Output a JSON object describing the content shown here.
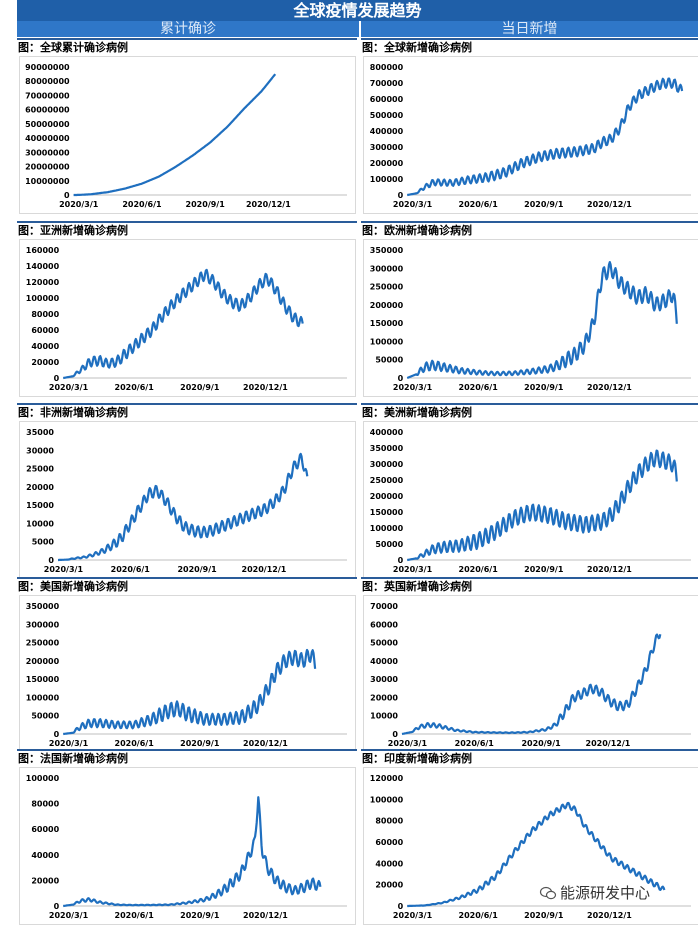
{
  "banner": {
    "title": "全球疫情发展趋势"
  },
  "columns": {
    "left": "累计确诊",
    "right": "当日新增"
  },
  "watermark": {
    "icon": "wechat-icon",
    "text": "能源研发中心"
  },
  "colors": {
    "line": "#1f6fbf",
    "banner": "#1f5fa8",
    "column_header": "#2f77c8"
  },
  "chart_data": [
    {
      "id": "c1",
      "type": "line",
      "title": "图：全球累计确诊病例",
      "x_labels": [
        "2020/3/1",
        "2020/6/1",
        "2020/9/1",
        "2020/12/1"
      ],
      "y_ticks": [
        0,
        10000000,
        20000000,
        30000000,
        40000000,
        50000000,
        60000000,
        70000000,
        80000000,
        90000000
      ],
      "ylim": [
        0,
        90000000
      ],
      "points": [
        [
          0,
          0
        ],
        [
          0.03,
          50000
        ],
        [
          0.1,
          500000
        ],
        [
          0.2,
          2000000
        ],
        [
          0.3,
          4500000
        ],
        [
          0.4,
          8000000
        ],
        [
          0.5,
          13000000
        ],
        [
          0.6,
          20000000
        ],
        [
          0.7,
          28000000
        ],
        [
          0.8,
          37000000
        ],
        [
          0.9,
          48000000
        ],
        [
          1.0,
          61000000
        ],
        [
          1.1,
          73000000
        ],
        [
          1.18,
          85000000
        ]
      ]
    },
    {
      "id": "c2",
      "type": "line",
      "title": "图：全球新增确诊病例",
      "x_labels": [
        "2020/3/1",
        "2020/6/1",
        "2020/9/1",
        "2020/12/1"
      ],
      "y_ticks": [
        0,
        100000,
        200000,
        300000,
        400000,
        500000,
        600000,
        700000,
        800000
      ],
      "ylim": [
        0,
        800000
      ],
      "points": [
        [
          0,
          0
        ],
        [
          0.05,
          10000
        ],
        [
          0.1,
          50000
        ],
        [
          0.15,
          80000
        ],
        [
          0.25,
          75000
        ],
        [
          0.35,
          95000
        ],
        [
          0.45,
          110000
        ],
        [
          0.55,
          140000
        ],
        [
          0.65,
          200000
        ],
        [
          0.75,
          240000
        ],
        [
          0.85,
          260000
        ],
        [
          0.95,
          270000
        ],
        [
          1.05,
          290000
        ],
        [
          1.1,
          330000
        ],
        [
          1.15,
          350000
        ],
        [
          1.2,
          420000
        ],
        [
          1.25,
          550000
        ],
        [
          1.3,
          620000
        ],
        [
          1.35,
          650000
        ],
        [
          1.4,
          680000
        ],
        [
          1.45,
          700000
        ],
        [
          1.5,
          700000
        ],
        [
          1.55,
          650000
        ]
      ],
      "amp": 30000
    },
    {
      "id": "c3",
      "type": "line",
      "title": "图：亚洲新增确诊病例",
      "x_labels": [
        "2020/3/1",
        "2020/6/1",
        "2020/9/1",
        "2020/12/1"
      ],
      "y_ticks": [
        0,
        20000,
        40000,
        60000,
        80000,
        100000,
        120000,
        140000,
        160000
      ],
      "ylim": [
        0,
        160000
      ],
      "points": [
        [
          0,
          0
        ],
        [
          0.05,
          2000
        ],
        [
          0.1,
          10000
        ],
        [
          0.15,
          20000
        ],
        [
          0.2,
          22000
        ],
        [
          0.25,
          18000
        ],
        [
          0.3,
          20000
        ],
        [
          0.35,
          30000
        ],
        [
          0.4,
          40000
        ],
        [
          0.45,
          50000
        ],
        [
          0.5,
          60000
        ],
        [
          0.55,
          75000
        ],
        [
          0.6,
          88000
        ],
        [
          0.65,
          100000
        ],
        [
          0.7,
          110000
        ],
        [
          0.75,
          120000
        ],
        [
          0.8,
          130000
        ],
        [
          0.85,
          120000
        ],
        [
          0.9,
          105000
        ],
        [
          0.95,
          95000
        ],
        [
          1.0,
          90000
        ],
        [
          1.05,
          100000
        ],
        [
          1.1,
          115000
        ],
        [
          1.15,
          125000
        ],
        [
          1.2,
          110000
        ],
        [
          1.25,
          90000
        ],
        [
          1.3,
          75000
        ],
        [
          1.35,
          68000
        ]
      ],
      "amp": 7000
    },
    {
      "id": "c4",
      "type": "line",
      "title": "图：欧洲新增确诊病例",
      "x_labels": [
        "2020/3/1",
        "2020/6/1",
        "2020/9/1",
        "2020/12/1"
      ],
      "y_ticks": [
        0,
        50000,
        100000,
        150000,
        200000,
        250000,
        300000,
        350000
      ],
      "ylim": [
        0,
        350000
      ],
      "points": [
        [
          0,
          0
        ],
        [
          0.05,
          10000
        ],
        [
          0.1,
          30000
        ],
        [
          0.15,
          35000
        ],
        [
          0.2,
          30000
        ],
        [
          0.3,
          20000
        ],
        [
          0.4,
          15000
        ],
        [
          0.5,
          12000
        ],
        [
          0.6,
          13000
        ],
        [
          0.7,
          18000
        ],
        [
          0.8,
          25000
        ],
        [
          0.85,
          35000
        ],
        [
          0.9,
          50000
        ],
        [
          0.95,
          65000
        ],
        [
          1.0,
          90000
        ],
        [
          1.05,
          150000
        ],
        [
          1.08,
          230000
        ],
        [
          1.1,
          280000
        ],
        [
          1.15,
          300000
        ],
        [
          1.2,
          260000
        ],
        [
          1.25,
          240000
        ],
        [
          1.3,
          220000
        ],
        [
          1.35,
          230000
        ],
        [
          1.4,
          200000
        ],
        [
          1.45,
          210000
        ],
        [
          1.5,
          230000
        ],
        [
          1.52,
          160000
        ]
      ],
      "amp": 20000
    },
    {
      "id": "c5",
      "type": "line",
      "title": "图：非洲新增确诊病例",
      "x_labels": [
        "2020/3/1",
        "2020/6/1",
        "2020/9/1",
        "2020/12/1"
      ],
      "y_ticks": [
        0,
        5000,
        10000,
        15000,
        20000,
        25000,
        30000,
        35000
      ],
      "ylim": [
        0,
        35000
      ],
      "points": [
        [
          0,
          0
        ],
        [
          0.05,
          100
        ],
        [
          0.1,
          500
        ],
        [
          0.15,
          800
        ],
        [
          0.2,
          1500
        ],
        [
          0.25,
          2500
        ],
        [
          0.3,
          4000
        ],
        [
          0.35,
          6000
        ],
        [
          0.4,
          10000
        ],
        [
          0.45,
          14000
        ],
        [
          0.5,
          18000
        ],
        [
          0.55,
          19000
        ],
        [
          0.6,
          16000
        ],
        [
          0.65,
          12000
        ],
        [
          0.7,
          9000
        ],
        [
          0.75,
          8000
        ],
        [
          0.8,
          7500
        ],
        [
          0.85,
          8000
        ],
        [
          0.9,
          9000
        ],
        [
          0.95,
          10000
        ],
        [
          1.0,
          11000
        ],
        [
          1.05,
          12000
        ],
        [
          1.1,
          13000
        ],
        [
          1.15,
          14000
        ],
        [
          1.2,
          16000
        ],
        [
          1.25,
          19000
        ],
        [
          1.3,
          25000
        ],
        [
          1.35,
          28000
        ],
        [
          1.38,
          22000
        ]
      ],
      "amp": 1500
    },
    {
      "id": "c6",
      "type": "line",
      "title": "图：美洲新增确诊病例",
      "x_labels": [
        "2020/3/1",
        "2020/6/1",
        "2020/9/1",
        "2020/12/1"
      ],
      "y_ticks": [
        0,
        50000,
        100000,
        150000,
        200000,
        250000,
        300000,
        350000,
        400000
      ],
      "ylim": [
        0,
        400000
      ],
      "points": [
        [
          0,
          0
        ],
        [
          0.05,
          5000
        ],
        [
          0.1,
          20000
        ],
        [
          0.15,
          35000
        ],
        [
          0.2,
          40000
        ],
        [
          0.3,
          45000
        ],
        [
          0.4,
          60000
        ],
        [
          0.5,
          90000
        ],
        [
          0.6,
          130000
        ],
        [
          0.7,
          150000
        ],
        [
          0.8,
          140000
        ],
        [
          0.9,
          120000
        ],
        [
          1.0,
          110000
        ],
        [
          1.1,
          120000
        ],
        [
          1.15,
          140000
        ],
        [
          1.2,
          180000
        ],
        [
          1.25,
          230000
        ],
        [
          1.3,
          270000
        ],
        [
          1.35,
          300000
        ],
        [
          1.4,
          320000
        ],
        [
          1.45,
          310000
        ],
        [
          1.5,
          300000
        ],
        [
          1.52,
          260000
        ]
      ],
      "amp": 25000
    },
    {
      "id": "c7",
      "type": "line",
      "title": "图：美国新增确诊病例",
      "x_labels": [
        "2020/3/1",
        "2020/6/1",
        "2020/9/1",
        "2020/12/1"
      ],
      "y_ticks": [
        0,
        50000,
        100000,
        150000,
        200000,
        250000,
        300000,
        350000
      ],
      "ylim": [
        0,
        350000
      ],
      "points": [
        [
          0,
          0
        ],
        [
          0.05,
          3000
        ],
        [
          0.1,
          20000
        ],
        [
          0.15,
          30000
        ],
        [
          0.2,
          30000
        ],
        [
          0.3,
          25000
        ],
        [
          0.4,
          25000
        ],
        [
          0.5,
          40000
        ],
        [
          0.6,
          65000
        ],
        [
          0.65,
          70000
        ],
        [
          0.7,
          55000
        ],
        [
          0.8,
          40000
        ],
        [
          0.9,
          40000
        ],
        [
          1.0,
          45000
        ],
        [
          1.05,
          60000
        ],
        [
          1.1,
          80000
        ],
        [
          1.15,
          120000
        ],
        [
          1.2,
          170000
        ],
        [
          1.25,
          200000
        ],
        [
          1.3,
          210000
        ],
        [
          1.35,
          200000
        ],
        [
          1.4,
          220000
        ],
        [
          1.42,
          190000
        ]
      ],
      "amp": 20000
    },
    {
      "id": "c8",
      "type": "line",
      "title": "图：英国新增确诊病例",
      "x_labels": [
        "2020/3/1",
        "2020/6/1",
        "2020/9/1",
        "2020/12/1"
      ],
      "y_ticks": [
        0,
        10000,
        20000,
        30000,
        40000,
        50000,
        60000,
        70000
      ],
      "ylim": [
        0,
        70000
      ],
      "points": [
        [
          0,
          0
        ],
        [
          0.05,
          1000
        ],
        [
          0.1,
          4000
        ],
        [
          0.15,
          5000
        ],
        [
          0.2,
          4500
        ],
        [
          0.3,
          2000
        ],
        [
          0.4,
          1000
        ],
        [
          0.5,
          800
        ],
        [
          0.6,
          700
        ],
        [
          0.7,
          1000
        ],
        [
          0.8,
          2500
        ],
        [
          0.85,
          5000
        ],
        [
          0.9,
          12000
        ],
        [
          0.95,
          20000
        ],
        [
          1.0,
          22000
        ],
        [
          1.05,
          25000
        ],
        [
          1.1,
          23000
        ],
        [
          1.15,
          18000
        ],
        [
          1.2,
          15000
        ],
        [
          1.25,
          16000
        ],
        [
          1.3,
          25000
        ],
        [
          1.35,
          35000
        ],
        [
          1.4,
          50000
        ],
        [
          1.43,
          56000
        ]
      ],
      "amp": 2500
    },
    {
      "id": "c9",
      "type": "line",
      "title": "图：法国新增确诊病例",
      "x_labels": [
        "2020/3/1",
        "2020/6/1",
        "2020/9/1",
        "2020/12/1"
      ],
      "y_ticks": [
        0,
        20000,
        40000,
        60000,
        80000,
        100000
      ],
      "ylim": [
        0,
        100000
      ],
      "points": [
        [
          0,
          0
        ],
        [
          0.05,
          1000
        ],
        [
          0.1,
          4000
        ],
        [
          0.15,
          5000
        ],
        [
          0.2,
          3000
        ],
        [
          0.3,
          1000
        ],
        [
          0.4,
          700
        ],
        [
          0.5,
          800
        ],
        [
          0.6,
          1000
        ],
        [
          0.7,
          2500
        ],
        [
          0.8,
          5000
        ],
        [
          0.85,
          8000
        ],
        [
          0.9,
          12000
        ],
        [
          0.95,
          18000
        ],
        [
          1.0,
          25000
        ],
        [
          1.05,
          40000
        ],
        [
          1.08,
          50000
        ],
        [
          1.1,
          85000
        ],
        [
          1.12,
          45000
        ],
        [
          1.15,
          30000
        ],
        [
          1.2,
          20000
        ],
        [
          1.25,
          15000
        ],
        [
          1.3,
          12000
        ],
        [
          1.35,
          14000
        ],
        [
          1.4,
          18000
        ],
        [
          1.45,
          15000
        ]
      ],
      "amp": 4000
    },
    {
      "id": "c10",
      "type": "line",
      "title": "图：印度新增确诊病例",
      "x_labels": [
        "2020/3/1",
        "2020/6/1",
        "2020/9/1",
        "2020/12/1"
      ],
      "y_ticks": [
        0,
        20000,
        40000,
        60000,
        80000,
        100000,
        120000
      ],
      "ylim": [
        0,
        120000
      ],
      "points": [
        [
          0,
          0
        ],
        [
          0.1,
          500
        ],
        [
          0.2,
          3000
        ],
        [
          0.3,
          8000
        ],
        [
          0.4,
          15000
        ],
        [
          0.5,
          28000
        ],
        [
          0.6,
          50000
        ],
        [
          0.7,
          70000
        ],
        [
          0.8,
          85000
        ],
        [
          0.9,
          95000
        ],
        [
          0.95,
          90000
        ],
        [
          1.0,
          75000
        ],
        [
          1.05,
          65000
        ],
        [
          1.1,
          55000
        ],
        [
          1.15,
          45000
        ],
        [
          1.2,
          40000
        ],
        [
          1.25,
          35000
        ],
        [
          1.3,
          30000
        ],
        [
          1.35,
          25000
        ],
        [
          1.4,
          20000
        ],
        [
          1.45,
          15000
        ]
      ],
      "amp": 2500
    }
  ]
}
